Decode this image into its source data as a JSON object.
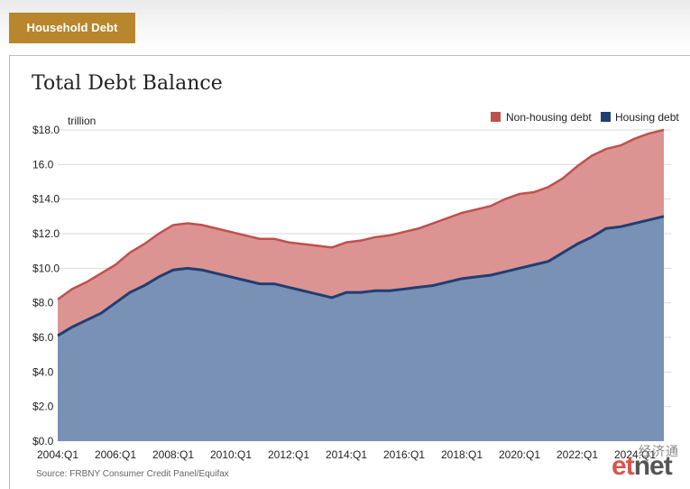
{
  "header": {
    "tab_label": "Household Debt"
  },
  "chart_data": {
    "type": "area",
    "title": "Total Debt Balance",
    "y_unit": "trillion",
    "ylim": [
      0,
      18
    ],
    "y_ticks": [
      "$18.0",
      "16.0",
      "$14.0",
      "$12.0",
      "$10.0",
      "$8.0",
      "$6.0",
      "$4.0",
      "$2.0",
      "$0.0"
    ],
    "y_tick_values": [
      18,
      16,
      14,
      12,
      10,
      8,
      6,
      4,
      2,
      0
    ],
    "x_tick_labels": [
      "2004:Q1",
      "2006:Q1",
      "2008:Q1",
      "2010:Q1",
      "2012:Q1",
      "2014:Q1",
      "2016:Q1",
      "2018:Q1",
      "2020:Q1",
      "2022:Q1",
      "2024:Q1"
    ],
    "x_tick_years": [
      2004,
      2006,
      2008,
      2010,
      2012,
      2014,
      2016,
      2018,
      2020,
      2022,
      2024
    ],
    "xlim": [
      2004.0,
      2025.25
    ],
    "legend_position": "top-right",
    "colors": {
      "non_housing": "#c0504d",
      "non_housing_fill": "#dc9492",
      "housing": "#1f3f73",
      "housing_fill": "#7991b4"
    },
    "series": [
      {
        "name": "Housing debt",
        "x": [
          2004.0,
          2004.5,
          2005.0,
          2005.5,
          2006.0,
          2006.5,
          2007.0,
          2007.5,
          2008.0,
          2008.5,
          2009.0,
          2009.5,
          2010.0,
          2010.5,
          2011.0,
          2011.5,
          2012.0,
          2012.5,
          2013.0,
          2013.5,
          2014.0,
          2014.5,
          2015.0,
          2015.5,
          2016.0,
          2016.5,
          2017.0,
          2017.5,
          2018.0,
          2018.5,
          2019.0,
          2019.5,
          2020.0,
          2020.5,
          2021.0,
          2021.5,
          2022.0,
          2022.5,
          2023.0,
          2023.5,
          2024.0,
          2024.5,
          2025.0
        ],
        "values": [
          6.1,
          6.6,
          7.0,
          7.4,
          8.0,
          8.6,
          9.0,
          9.5,
          9.9,
          10.0,
          9.9,
          9.7,
          9.5,
          9.3,
          9.1,
          9.1,
          8.9,
          8.7,
          8.5,
          8.3,
          8.6,
          8.6,
          8.7,
          8.7,
          8.8,
          8.9,
          9.0,
          9.2,
          9.4,
          9.5,
          9.6,
          9.8,
          10.0,
          10.2,
          10.4,
          10.9,
          11.4,
          11.8,
          12.3,
          12.4,
          12.6,
          12.8,
          13.0
        ]
      },
      {
        "name": "Non-housing debt",
        "x": [
          2004.0,
          2004.5,
          2005.0,
          2005.5,
          2006.0,
          2006.5,
          2007.0,
          2007.5,
          2008.0,
          2008.5,
          2009.0,
          2009.5,
          2010.0,
          2010.5,
          2011.0,
          2011.5,
          2012.0,
          2012.5,
          2013.0,
          2013.5,
          2014.0,
          2014.5,
          2015.0,
          2015.5,
          2016.0,
          2016.5,
          2017.0,
          2017.5,
          2018.0,
          2018.5,
          2019.0,
          2019.5,
          2020.0,
          2020.5,
          2021.0,
          2021.5,
          2022.0,
          2022.5,
          2023.0,
          2023.5,
          2024.0,
          2024.5,
          2025.0
        ],
        "values": [
          2.1,
          2.2,
          2.2,
          2.3,
          2.2,
          2.3,
          2.4,
          2.5,
          2.6,
          2.6,
          2.6,
          2.6,
          2.6,
          2.6,
          2.6,
          2.6,
          2.6,
          2.7,
          2.8,
          2.9,
          2.9,
          3.0,
          3.1,
          3.2,
          3.3,
          3.4,
          3.6,
          3.7,
          3.8,
          3.9,
          4.0,
          4.2,
          4.3,
          4.2,
          4.3,
          4.3,
          4.5,
          4.7,
          4.6,
          4.7,
          4.9,
          5.0,
          5.0
        ]
      }
    ]
  },
  "source": "Source: FRBNY Consumer Credit Panel/Equifax",
  "watermark": {
    "chinese": "经济通",
    "logo_e": "et",
    "logo_t": "net"
  }
}
